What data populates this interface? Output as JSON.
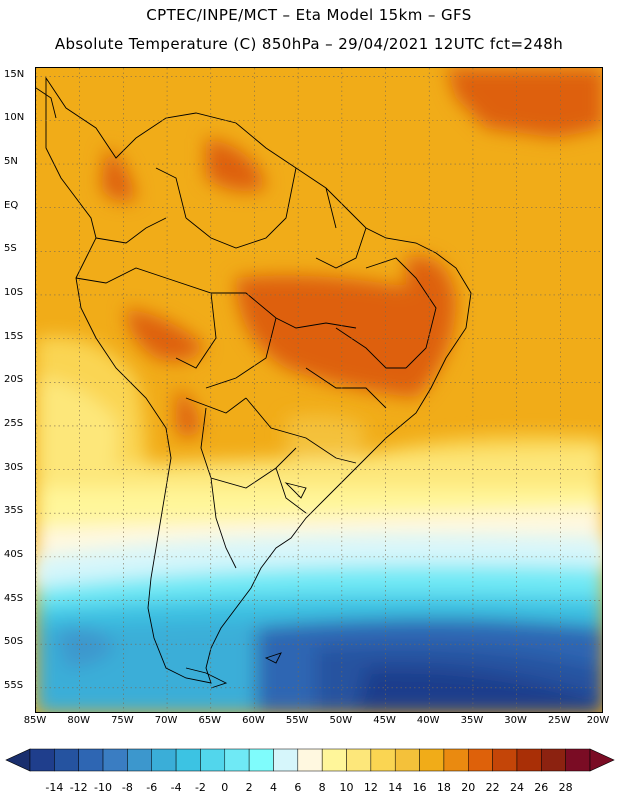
{
  "header": {
    "line1": "CPTEC/INPE/MCT –  Eta Model 15km – GFS",
    "line2": "Absolute Temperature (C) 850hPa – 29/04/2021 12UTC fct=248h"
  },
  "map": {
    "lat_labels": [
      "15N",
      "10N",
      "5N",
      "EQ",
      "5S",
      "10S",
      "15S",
      "20S",
      "25S",
      "30S",
      "35S",
      "40S",
      "45S",
      "50S",
      "55S"
    ],
    "lat_values": [
      15,
      10,
      5,
      0,
      -5,
      -10,
      -15,
      -20,
      -25,
      -30,
      -35,
      -40,
      -45,
      -50,
      -55
    ],
    "lon_labels": [
      "85W",
      "80W",
      "75W",
      "70W",
      "65W",
      "60W",
      "55W",
      "50W",
      "45W",
      "40W",
      "35W",
      "30W",
      "25W",
      "20W"
    ],
    "lon_values": [
      -85,
      -80,
      -75,
      -70,
      -65,
      -60,
      -55,
      -50,
      -45,
      -40,
      -35,
      -30,
      -25,
      -20
    ],
    "extent": {
      "lon_min": -85,
      "lon_max": -20,
      "lat_min": -58,
      "lat_max": 16
    }
  },
  "colorbar": {
    "labels": [
      "-14",
      "-12",
      "-10",
      "-8",
      "-6",
      "-4",
      "-2",
      "0",
      "2",
      "4",
      "6",
      "8",
      "10",
      "12",
      "14",
      "16",
      "18",
      "20",
      "22",
      "24",
      "26",
      "28"
    ],
    "colors": [
      "#1f3e8c",
      "#2553a0",
      "#2e66b3",
      "#3a7dc2",
      "#3c97cd",
      "#3aaed8",
      "#3cc3e3",
      "#52d6ec",
      "#6fe9f5",
      "#7ffcfc",
      "#d6f6fb",
      "#fff8e0",
      "#fff69a",
      "#fde77a",
      "#fad552",
      "#f4c13a",
      "#f1ac18",
      "#ea8a10",
      "#de610a",
      "#c44508",
      "#a92f06",
      "#8c2210",
      "#7a0c24"
    ],
    "under_color": "#1a2f6e",
    "over_color": "#7a0c24"
  }
}
